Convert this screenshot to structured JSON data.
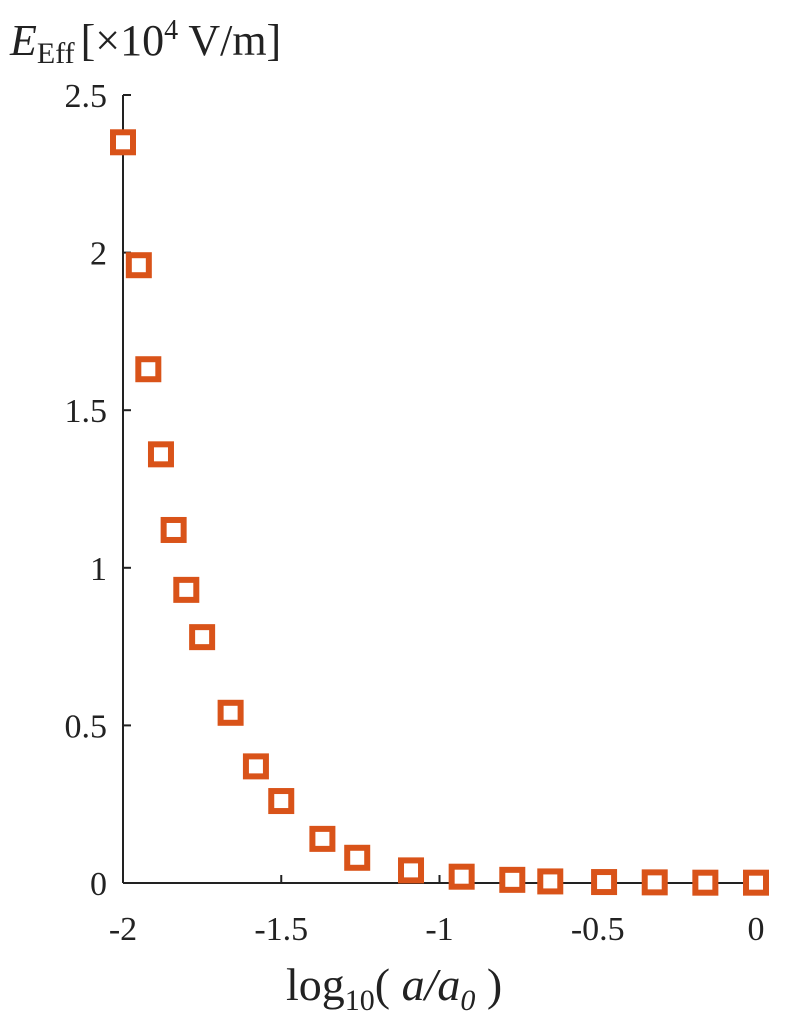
{
  "chart_data": {
    "type": "scatter",
    "ylabel_main": "E",
    "ylabel_sub": "Eff",
    "ylabel_unit_pre": "[×10",
    "ylabel_unit_exp": "4",
    "ylabel_unit_post": " V/m]",
    "xlabel_pre": "log",
    "xlabel_sub": "10",
    "xlabel_open": "( ",
    "xlabel_a": "a",
    "xlabel_slash": "/",
    "xlabel_a0": "a",
    "xlabel_a0_sub": "0",
    "xlabel_close": " )",
    "xlim": [
      -2,
      0
    ],
    "ylim": [
      0,
      2.5
    ],
    "xticks": [
      -2,
      -1.5,
      -1,
      -0.5,
      0
    ],
    "xtick_labels": [
      "-2",
      "-1.5",
      "-1",
      "-0.5",
      "0"
    ],
    "yticks": [
      0,
      0.5,
      1,
      1.5,
      2,
      2.5
    ],
    "ytick_labels": [
      "0",
      "0.5",
      "1",
      "1.5",
      "2",
      "2.5"
    ],
    "grid": false,
    "marker": "square-open",
    "series": [
      {
        "color": "#d95319",
        "points": [
          {
            "x": -2.0,
            "y": 2.35
          },
          {
            "x": -1.95,
            "y": 1.96
          },
          {
            "x": -1.92,
            "y": 1.63
          },
          {
            "x": -1.88,
            "y": 1.36
          },
          {
            "x": -1.84,
            "y": 1.12
          },
          {
            "x": -1.8,
            "y": 0.93
          },
          {
            "x": -1.75,
            "y": 0.78
          },
          {
            "x": -1.66,
            "y": 0.54
          },
          {
            "x": -1.58,
            "y": 0.37
          },
          {
            "x": -1.5,
            "y": 0.26
          },
          {
            "x": -1.37,
            "y": 0.14
          },
          {
            "x": -1.26,
            "y": 0.08
          },
          {
            "x": -1.09,
            "y": 0.04
          },
          {
            "x": -0.93,
            "y": 0.02
          },
          {
            "x": -0.77,
            "y": 0.01
          },
          {
            "x": -0.65,
            "y": 0.005
          },
          {
            "x": -0.48,
            "y": 0.003
          },
          {
            "x": -0.32,
            "y": 0.002
          },
          {
            "x": -0.16,
            "y": 0.001
          },
          {
            "x": 0.0,
            "y": 0.001
          }
        ]
      }
    ]
  }
}
